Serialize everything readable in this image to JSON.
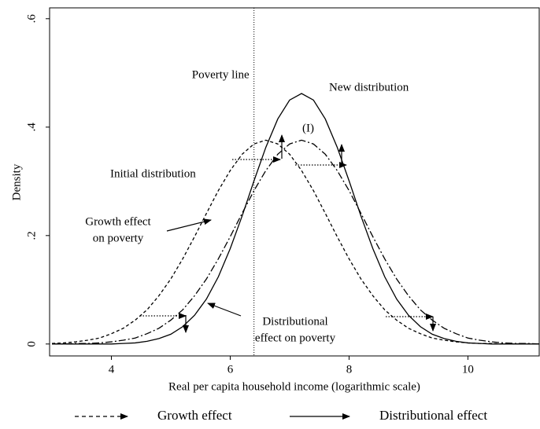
{
  "chart_data": {
    "type": "line",
    "x_label": "Real per capita household income (logarithmic scale)",
    "y_label": "Density",
    "x": [
      3.0,
      3.2,
      3.4,
      3.6,
      3.8,
      4.0,
      4.2,
      4.4,
      4.6,
      4.8,
      5.0,
      5.2,
      5.4,
      5.6,
      5.8,
      6.0,
      6.2,
      6.4,
      6.6,
      6.8,
      7.0,
      7.2,
      7.4,
      7.6,
      7.8,
      8.0,
      8.2,
      8.4,
      8.6,
      8.8,
      9.0,
      9.2,
      9.4,
      9.6,
      9.8,
      10.0,
      10.2,
      10.4,
      10.6,
      10.8,
      11.0,
      11.2
    ],
    "series": [
      {
        "name": "Initial distribution",
        "color": "#000000",
        "line_style": "dashed",
        "values": [
          0.001,
          0.002,
          0.004,
          0.007,
          0.011,
          0.019,
          0.029,
          0.044,
          0.063,
          0.089,
          0.12,
          0.157,
          0.198,
          0.241,
          0.283,
          0.32,
          0.35,
          0.369,
          0.376,
          0.369,
          0.35,
          0.32,
          0.283,
          0.241,
          0.198,
          0.157,
          0.12,
          0.089,
          0.063,
          0.044,
          0.029,
          0.019,
          0.011,
          0.007,
          0.004,
          0.002,
          0.001,
          0.001,
          0,
          0,
          0,
          0
        ]
      },
      {
        "name": "(I)",
        "color": "#000000",
        "line_style": "dashdot",
        "values": [
          0,
          0,
          0.001,
          0.001,
          0.002,
          0.004,
          0.007,
          0.011,
          0.019,
          0.029,
          0.044,
          0.063,
          0.089,
          0.12,
          0.157,
          0.198,
          0.241,
          0.283,
          0.32,
          0.35,
          0.369,
          0.376,
          0.369,
          0.35,
          0.32,
          0.283,
          0.241,
          0.198,
          0.157,
          0.12,
          0.089,
          0.063,
          0.044,
          0.029,
          0.019,
          0.011,
          0.007,
          0.004,
          0.002,
          0.001,
          0.001,
          0
        ]
      },
      {
        "name": "New distribution",
        "color": "#000000",
        "line_style": "solid",
        "values": [
          0,
          0,
          0,
          0,
          0,
          0,
          0.001,
          0.002,
          0.005,
          0.01,
          0.018,
          0.032,
          0.053,
          0.083,
          0.124,
          0.176,
          0.236,
          0.301,
          0.363,
          0.415,
          0.45,
          0.462,
          0.45,
          0.415,
          0.363,
          0.301,
          0.236,
          0.176,
          0.124,
          0.083,
          0.053,
          0.032,
          0.018,
          0.01,
          0.005,
          0.002,
          0.001,
          0,
          0,
          0,
          0,
          0
        ]
      }
    ],
    "poverty_line": {
      "label": "Poverty line",
      "x": 6.4
    },
    "annotations": [
      [
        "Growth effect",
        "on poverty"
      ],
      [
        "Distributional",
        "effect on poverty"
      ]
    ],
    "legend_items": [
      "Growth effect",
      "Distributional effect"
    ],
    "xlim": [
      2.96,
      11.2
    ],
    "ylim": [
      -0.022,
      0.62
    ],
    "xticks": [
      4,
      6,
      8,
      10
    ],
    "yticks": [
      0,
      {
        "value": 0.2,
        "label": ".2"
      },
      {
        "value": 0.4,
        "label": ".4"
      },
      {
        "value": 0.6,
        "label": ".6"
      }
    ]
  }
}
